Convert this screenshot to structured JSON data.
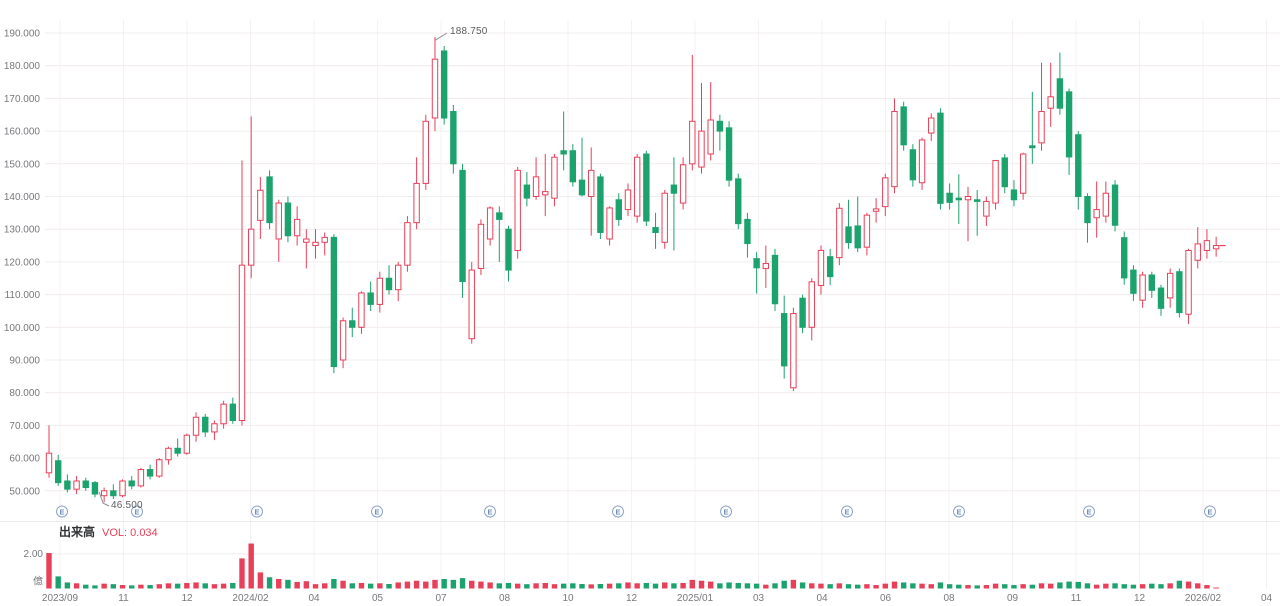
{
  "chart": {
    "price_axis": {
      "labels": [
        "190.000",
        "180.000",
        "170.000",
        "160.000",
        "150.000",
        "140.000",
        "130.000",
        "120.000",
        "110.000",
        "100.000",
        "90.000",
        "80.000",
        "70.000",
        "60.000",
        "50.000"
      ],
      "max": 190,
      "min": 50,
      "step": 10
    },
    "time_axis": {
      "labels": [
        "2023/09",
        "11",
        "12",
        "2024/02",
        "04",
        "05",
        "07",
        "08",
        "10",
        "12",
        "2025/01",
        "03",
        "04",
        "06",
        "08",
        "09",
        "11",
        "12",
        "2026/02",
        "04"
      ]
    },
    "annotations": {
      "high_label": "188.750",
      "low_label": "46.500",
      "high_index": 42,
      "low_index": 6
    },
    "earnings": {
      "letter": "E",
      "x_positions": [
        62,
        137,
        257,
        377,
        490,
        618,
        726,
        847,
        959,
        1089,
        1210
      ]
    },
    "colors": {
      "up": "#e84058",
      "down": "#1ca26c",
      "grid_h": "#f1ecee",
      "grid_v": "#f4f1f2",
      "axis_text": "#77787c",
      "badge_ring": "#8ba2cc",
      "badge_text": "#6f8cc0",
      "separator": "#ebebeb",
      "callout": "#8f9093"
    }
  },
  "volume_pane": {
    "title": "出来高",
    "vol_label": "VOL: 0.034",
    "axis_label": "2.00",
    "unit": "億",
    "axis_max": 2.0
  },
  "chart_data": {
    "type": "candlestick",
    "interval": "weekly",
    "title": "",
    "y_axis_range": [
      50,
      190
    ],
    "price_range": [
      46.5,
      188.75
    ],
    "high_annotation": 188.75,
    "low_annotation": 46.5,
    "ohlc": [
      [
        55.5,
        70,
        54,
        61.5
      ],
      [
        59.2,
        61,
        51.5,
        52.5
      ],
      [
        53,
        55,
        49.5,
        50.5
      ],
      [
        50.5,
        54.5,
        49,
        53
      ],
      [
        53,
        54,
        50,
        51
      ],
      [
        52.5,
        53,
        48,
        49
      ],
      [
        48.5,
        51,
        46.5,
        50
      ],
      [
        50,
        52,
        47.5,
        48.5
      ],
      [
        48.5,
        53.5,
        48,
        53
      ],
      [
        53,
        54.5,
        50.5,
        51.5
      ],
      [
        51.5,
        57,
        51,
        56.5
      ],
      [
        56.5,
        58,
        53.5,
        54.5
      ],
      [
        54.5,
        60,
        54,
        59.5
      ],
      [
        59.5,
        63.5,
        58,
        63
      ],
      [
        63,
        66,
        60.5,
        61.5
      ],
      [
        61.5,
        67.5,
        61,
        67
      ],
      [
        67,
        74,
        65,
        72.5
      ],
      [
        72.5,
        73.5,
        66.5,
        68
      ],
      [
        68,
        71.5,
        65.5,
        70.5
      ],
      [
        70.5,
        77.5,
        69,
        76.5
      ],
      [
        76.5,
        78.5,
        70.5,
        71.5
      ],
      [
        71.5,
        151,
        70,
        119
      ],
      [
        119,
        164.5,
        115,
        130
      ],
      [
        132.7,
        146,
        127,
        141.9
      ],
      [
        146,
        148,
        130,
        132
      ],
      [
        127,
        139,
        120,
        138
      ],
      [
        138,
        140,
        126,
        128
      ],
      [
        128,
        137,
        125,
        133
      ],
      [
        126,
        130,
        118,
        127
      ],
      [
        125,
        130,
        121,
        126
      ],
      [
        126,
        129,
        122,
        127.5
      ],
      [
        127.5,
        128.5,
        86,
        88
      ],
      [
        90,
        103,
        87.5,
        102
      ],
      [
        102,
        106,
        97,
        100
      ],
      [
        100,
        111,
        98,
        110.5
      ],
      [
        110.5,
        114,
        105,
        107
      ],
      [
        107,
        117,
        104.5,
        115
      ],
      [
        115,
        119,
        110,
        111.5
      ],
      [
        111.5,
        120,
        108,
        119
      ],
      [
        119,
        134,
        117,
        132
      ],
      [
        132,
        152,
        130,
        144
      ],
      [
        144,
        165,
        142,
        163
      ],
      [
        164,
        188.75,
        160,
        182
      ],
      [
        184.5,
        186,
        162,
        164
      ],
      [
        166,
        168,
        147,
        150
      ],
      [
        148,
        150,
        109,
        114
      ],
      [
        96.5,
        120,
        95,
        117.5
      ],
      [
        118,
        133,
        116,
        131.5
      ],
      [
        127,
        137,
        125,
        136.5
      ],
      [
        135,
        137,
        120,
        133
      ],
      [
        130,
        131,
        114,
        117.5
      ],
      [
        123.5,
        149,
        121,
        148
      ],
      [
        143.5,
        147.5,
        137,
        139.5
      ],
      [
        140,
        152,
        139,
        146
      ],
      [
        140.5,
        153,
        134,
        141.5
      ],
      [
        139.5,
        153,
        137,
        152
      ],
      [
        154,
        166,
        148,
        153
      ],
      [
        154,
        156,
        143,
        144.5
      ],
      [
        145,
        158,
        140,
        140.5
      ],
      [
        140,
        155,
        128,
        148
      ],
      [
        146,
        147,
        127,
        129
      ],
      [
        127,
        137,
        125,
        136.5
      ],
      [
        139,
        141,
        131,
        133
      ],
      [
        136,
        144,
        134,
        142
      ],
      [
        134,
        153,
        132,
        152
      ],
      [
        153,
        154,
        131,
        132.5
      ],
      [
        130.5,
        135,
        124,
        129
      ],
      [
        126,
        142,
        124,
        141
      ],
      [
        143.5,
        152,
        123.5,
        141
      ],
      [
        138,
        152,
        136,
        149.7
      ],
      [
        150,
        183.3,
        148,
        163
      ],
      [
        149,
        174.7,
        147,
        160
      ],
      [
        153,
        175,
        151,
        163.4
      ],
      [
        163,
        165,
        154,
        160
      ],
      [
        161,
        163,
        143,
        145
      ],
      [
        145.4,
        147,
        130,
        131.7
      ],
      [
        133,
        135,
        121.3,
        125.6
      ],
      [
        121,
        123,
        110.3,
        118.2
      ],
      [
        118,
        125,
        112,
        119.5
      ],
      [
        122,
        124,
        105,
        107.2
      ],
      [
        104.2,
        109.7,
        84.3,
        88.2
      ],
      [
        81.5,
        106,
        80.5,
        104.2
      ],
      [
        108.9,
        110,
        98.2,
        100
      ],
      [
        100,
        115,
        96,
        113.9
      ],
      [
        112.8,
        125,
        110,
        123.5
      ],
      [
        121.6,
        124,
        113,
        115.5
      ],
      [
        121.3,
        138,
        119,
        136.4
      ],
      [
        130.7,
        139,
        124,
        125.9
      ],
      [
        131,
        140,
        123,
        124.3
      ],
      [
        124.5,
        135,
        122,
        134.3
      ],
      [
        135.5,
        139.5,
        132,
        136.2
      ],
      [
        136.9,
        147,
        134,
        145.7
      ],
      [
        143,
        170,
        141,
        166
      ],
      [
        167.4,
        169,
        154,
        155.8
      ],
      [
        154.3,
        156,
        143,
        145.1
      ],
      [
        144.2,
        158,
        142,
        157.3
      ],
      [
        159.4,
        165.5,
        157,
        164
      ],
      [
        165.5,
        167,
        136,
        137.9
      ],
      [
        141,
        144,
        136,
        138.2
      ],
      [
        139.5,
        146.8,
        131.6,
        139
      ],
      [
        139,
        143,
        126.3,
        140
      ],
      [
        139,
        142,
        128,
        138.5
      ],
      [
        134,
        140,
        131,
        138.5
      ],
      [
        138,
        151.2,
        136,
        151
      ],
      [
        151.8,
        153,
        141,
        143
      ],
      [
        142,
        145,
        137,
        139
      ],
      [
        141,
        153.4,
        139,
        153
      ],
      [
        155.5,
        172,
        150,
        154.9
      ],
      [
        156.4,
        180.9,
        154,
        166
      ],
      [
        167,
        180.9,
        161.3,
        170.5
      ],
      [
        176,
        184,
        165,
        167
      ],
      [
        172,
        173,
        146.6,
        152.1
      ],
      [
        158.9,
        160,
        136,
        140
      ],
      [
        140,
        141,
        125.9,
        132
      ],
      [
        133.5,
        144.6,
        127.4,
        136
      ],
      [
        134,
        144.6,
        132,
        141
      ],
      [
        143.5,
        145,
        129.3,
        131.2
      ],
      [
        127.4,
        129.3,
        113,
        115.1
      ],
      [
        117.5,
        119,
        108,
        110.4
      ],
      [
        108.3,
        117,
        106,
        116
      ],
      [
        116,
        117,
        109,
        111.3
      ],
      [
        112,
        113,
        103.5,
        105.8
      ],
      [
        109,
        118,
        106,
        116.5
      ],
      [
        117,
        118,
        103,
        104.5
      ],
      [
        104,
        124,
        101,
        123.5
      ],
      [
        120.5,
        130.6,
        118,
        125.5
      ],
      [
        123.5,
        130,
        121,
        126.5
      ],
      [
        124,
        127.7,
        121.6,
        125
      ]
    ],
    "volumes": [
      2.05,
      0.7,
      0.35,
      0.3,
      0.22,
      0.18,
      0.28,
      0.25,
      0.2,
      0.18,
      0.22,
      0.2,
      0.25,
      0.3,
      0.28,
      0.32,
      0.35,
      0.3,
      0.25,
      0.28,
      0.32,
      1.74,
      2.6,
      0.93,
      0.65,
      0.55,
      0.5,
      0.38,
      0.42,
      0.25,
      0.3,
      0.55,
      0.45,
      0.3,
      0.32,
      0.28,
      0.3,
      0.26,
      0.35,
      0.4,
      0.45,
      0.4,
      0.5,
      0.55,
      0.5,
      0.6,
      0.45,
      0.4,
      0.35,
      0.3,
      0.32,
      0.28,
      0.25,
      0.3,
      0.32,
      0.25,
      0.28,
      0.3,
      0.26,
      0.24,
      0.26,
      0.28,
      0.3,
      0.35,
      0.3,
      0.32,
      0.28,
      0.35,
      0.3,
      0.32,
      0.5,
      0.45,
      0.4,
      0.3,
      0.35,
      0.32,
      0.3,
      0.28,
      0.22,
      0.3,
      0.45,
      0.5,
      0.35,
      0.3,
      0.28,
      0.25,
      0.3,
      0.25,
      0.22,
      0.25,
      0.2,
      0.28,
      0.4,
      0.35,
      0.3,
      0.28,
      0.25,
      0.35,
      0.25,
      0.22,
      0.2,
      0.18,
      0.2,
      0.28,
      0.25,
      0.2,
      0.25,
      0.22,
      0.3,
      0.28,
      0.35,
      0.4,
      0.38,
      0.3,
      0.22,
      0.28,
      0.3,
      0.25,
      0.22,
      0.25,
      0.28,
      0.25,
      0.3,
      0.45,
      0.4,
      0.3,
      0.2,
      0.034
    ]
  }
}
